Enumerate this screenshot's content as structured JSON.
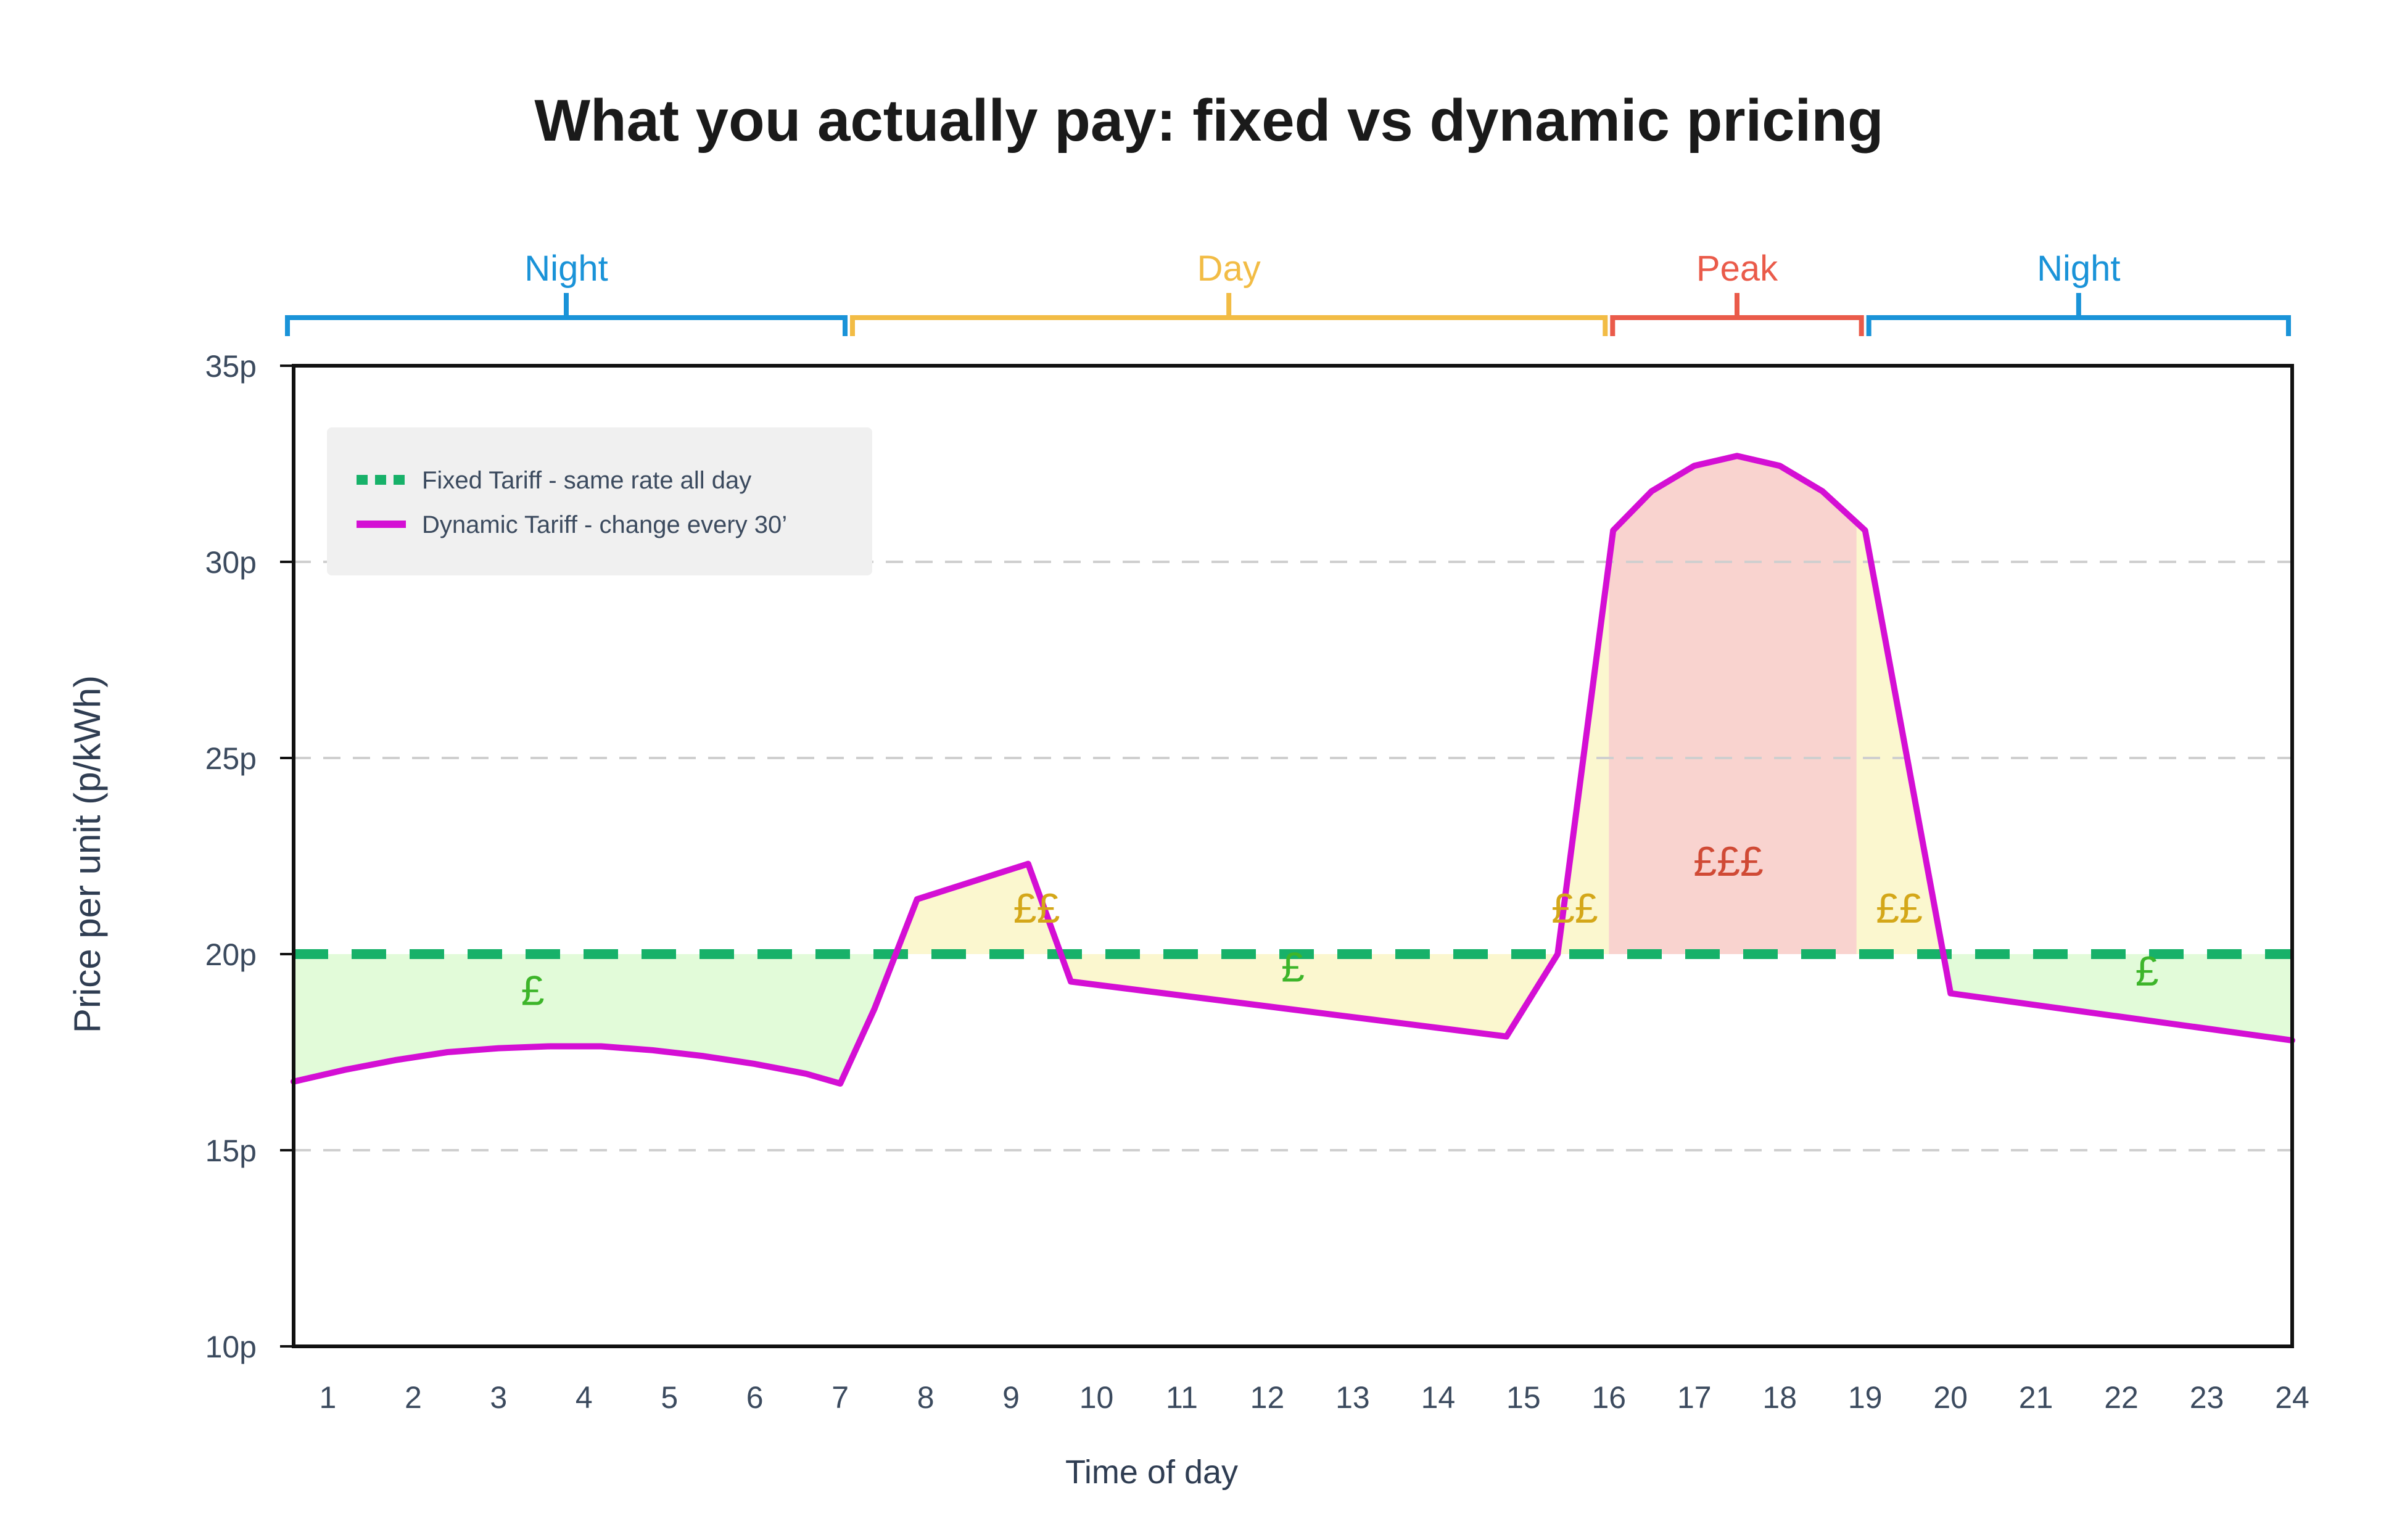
{
  "chart_data": {
    "type": "line",
    "title": "What you actually pay: fixed vs dynamic pricing",
    "xlabel": "Time of day",
    "ylabel": "Price per unit (p/kWh)",
    "xlim": [
      0.6,
      24
    ],
    "ylim": [
      10,
      35
    ],
    "x_ticks": [
      1,
      2,
      3,
      4,
      5,
      6,
      7,
      8,
      9,
      10,
      11,
      12,
      13,
      14,
      15,
      16,
      17,
      18,
      19,
      20,
      21,
      22,
      23,
      24
    ],
    "y_ticks": [
      {
        "value": 10,
        "label": "10p"
      },
      {
        "value": 15,
        "label": "15p"
      },
      {
        "value": 20,
        "label": "20p"
      },
      {
        "value": 25,
        "label": "25p"
      },
      {
        "value": 30,
        "label": "30p"
      },
      {
        "value": 35,
        "label": "35p"
      }
    ],
    "grid": {
      "horizontal_dashed": true
    },
    "legend": {
      "placement": "top-left",
      "entries": [
        {
          "label": "Fixed Tariff - same rate all day",
          "style": "dashed",
          "color": "#17b169"
        },
        {
          "label": "Dynamic Tariff - change every 30’",
          "style": "solid",
          "color": "#d40fd4"
        }
      ]
    },
    "series": [
      {
        "name": "Fixed Tariff - same rate all day",
        "x": [
          0.6,
          24
        ],
        "values": [
          20,
          20
        ],
        "color": "#17b169"
      },
      {
        "name": "Dynamic Tariff - change every 30’",
        "x": [
          0.6,
          1.2,
          1.8,
          2.4,
          3.0,
          3.6,
          4.2,
          4.8,
          5.4,
          6.0,
          6.6,
          7.0,
          7.4,
          7.9,
          9.2,
          9.7,
          14.8,
          15.4,
          16.05,
          16.5,
          17.0,
          17.5,
          18.0,
          18.5,
          19.0,
          20.0,
          24.0
        ],
        "values": [
          16.75,
          17.05,
          17.3,
          17.5,
          17.6,
          17.65,
          17.65,
          17.55,
          17.4,
          17.2,
          16.95,
          16.7,
          18.6,
          21.4,
          22.3,
          19.3,
          17.9,
          20.0,
          30.8,
          31.8,
          32.45,
          32.7,
          32.45,
          31.8,
          30.8,
          19.0,
          17.8
        ],
        "color": "#d40fd4"
      }
    ],
    "zones": [
      {
        "label": "Night",
        "from": 0.6,
        "to": 7.1,
        "color": "#1a93d8"
      },
      {
        "label": "Day",
        "from": 7.1,
        "to": 16.0,
        "color": "#f2bc45"
      },
      {
        "label": "Peak",
        "from": 16.0,
        "to": 19.0,
        "color": "#ea5b4a"
      },
      {
        "label": "Night",
        "from": 19.0,
        "to": 24.0,
        "color": "#1a93d8"
      }
    ],
    "annotations": [
      {
        "text": "£",
        "x": 3.4,
        "y": 18.7,
        "color": "#3db52a"
      },
      {
        "text": "££",
        "x": 9.3,
        "y": 20.8,
        "color": "#d4a719"
      },
      {
        "text": "£",
        "x": 12.3,
        "y": 19.3,
        "color": "#3db52a"
      },
      {
        "text": "££",
        "x": 15.6,
        "y": 20.8,
        "color": "#d4a719"
      },
      {
        "text": "£££",
        "x": 17.4,
        "y": 22.0,
        "color": "#d04a35"
      },
      {
        "text": "££",
        "x": 19.4,
        "y": 20.8,
        "color": "#d4a719"
      },
      {
        "text": "£",
        "x": 22.3,
        "y": 19.2,
        "color": "#3db52a"
      }
    ],
    "fill_colors": {
      "below_fixed": "#e2fbd9",
      "above_fixed": "#fbf7cf",
      "peak": "#f9d3cf"
    }
  }
}
